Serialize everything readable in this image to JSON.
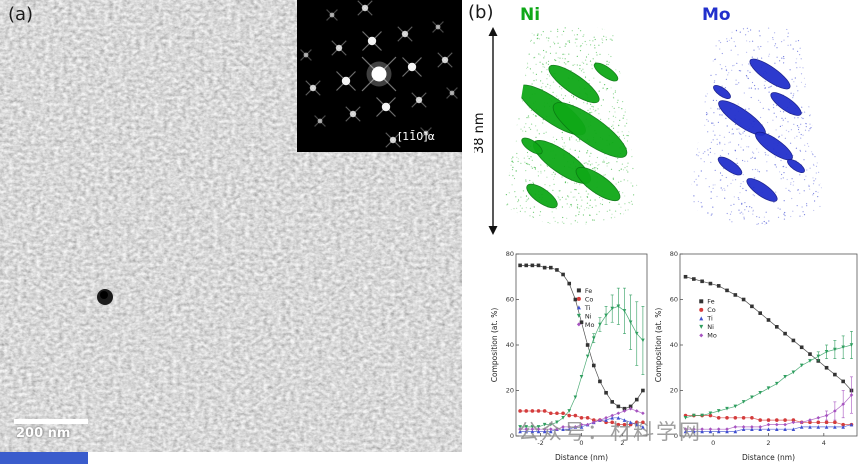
{
  "panel_a": {
    "label": "(a)",
    "scale_bar": "200 nm",
    "zone_axis": "[11̄0]α"
  },
  "panel_b": {
    "label": "(b)",
    "ni_label": "Ni",
    "mo_label": "Mo",
    "scale_label": "38 nm",
    "ni_color": "#0fa818",
    "mo_color": "#2230cc"
  },
  "watermark": "公众号：材料学网",
  "chart_data": [
    {
      "type": "line",
      "title": "",
      "xlabel": "Distance (nm)",
      "ylabel": "Composition (at. %)",
      "xlim": [
        -3.2,
        3.2
      ],
      "ylim": [
        0,
        80
      ],
      "xticks": [
        -2,
        0,
        2
      ],
      "yticks": [
        0,
        20,
        40,
        60,
        80
      ],
      "legend_pos": [
        0.48,
        0.2
      ],
      "x": [
        -3,
        -2.7,
        -2.4,
        -2.1,
        -1.8,
        -1.5,
        -1.2,
        -0.9,
        -0.6,
        -0.3,
        0,
        0.3,
        0.6,
        0.9,
        1.2,
        1.5,
        1.8,
        2.1,
        2.4,
        2.7,
        3
      ],
      "series": [
        {
          "name": "Fe",
          "color": "#333333",
          "marker": "square",
          "values": [
            75,
            75,
            75,
            75,
            74,
            74,
            73,
            71,
            67,
            60,
            50,
            40,
            31,
            24,
            19,
            15,
            13,
            12,
            13,
            16,
            20
          ]
        },
        {
          "name": "Co",
          "color": "#d43c3c",
          "marker": "circle",
          "values": [
            11,
            11,
            11,
            11,
            11,
            10,
            10,
            10,
            9,
            9,
            8,
            8,
            7,
            7,
            6,
            6,
            5,
            5,
            5,
            6,
            6
          ]
        },
        {
          "name": "Ti",
          "color": "#4150d0",
          "marker": "triangle-up",
          "values": [
            2,
            2,
            2,
            2,
            2,
            2,
            3,
            3,
            3,
            4,
            4,
            5,
            6,
            7,
            7,
            8,
            8,
            7,
            6,
            5,
            4
          ]
        },
        {
          "name": "Ni",
          "color": "#2f9e5f",
          "marker": "triangle-down",
          "values": [
            4,
            4,
            4,
            4,
            5,
            5,
            6,
            8,
            11,
            17,
            26,
            35,
            43,
            49,
            53,
            56,
            57,
            55,
            50,
            45,
            42
          ],
          "errors": [
            0,
            0,
            0,
            0,
            0,
            0,
            0,
            0,
            0,
            0,
            0,
            0,
            2,
            3,
            4,
            6,
            8,
            10,
            12,
            14,
            15
          ]
        },
        {
          "name": "Mo",
          "color": "#a653c0",
          "marker": "diamond",
          "values": [
            3,
            3,
            3,
            3,
            3,
            3,
            3,
            4,
            4,
            4,
            5,
            5,
            6,
            7,
            8,
            9,
            10,
            11,
            12,
            11,
            10
          ]
        }
      ]
    },
    {
      "type": "line",
      "title": "",
      "xlabel": "Distance (nm)",
      "ylabel": "Composition (at. %)",
      "xlim": [
        -1.2,
        5.2
      ],
      "ylim": [
        0,
        80
      ],
      "xticks": [
        0,
        2,
        4
      ],
      "yticks": [
        0,
        20,
        40,
        60,
        80
      ],
      "legend_pos": [
        0.12,
        0.26
      ],
      "x": [
        -1,
        -0.7,
        -0.4,
        -0.1,
        0.2,
        0.5,
        0.8,
        1.1,
        1.4,
        1.7,
        2,
        2.3,
        2.6,
        2.9,
        3.2,
        3.5,
        3.8,
        4.1,
        4.4,
        4.7,
        5
      ],
      "series": [
        {
          "name": "Fe",
          "color": "#333333",
          "marker": "square",
          "values": [
            70,
            69,
            68,
            67,
            66,
            64,
            62,
            60,
            57,
            54,
            51,
            48,
            45,
            42,
            39,
            36,
            33,
            30,
            27,
            24,
            20
          ]
        },
        {
          "name": "Co",
          "color": "#d43c3c",
          "marker": "circle",
          "values": [
            9,
            9,
            9,
            9,
            8,
            8,
            8,
            8,
            8,
            7,
            7,
            7,
            7,
            7,
            6,
            6,
            6,
            6,
            6,
            5,
            5
          ]
        },
        {
          "name": "Ti",
          "color": "#4150d0",
          "marker": "triangle-up",
          "values": [
            2,
            2,
            2,
            2,
            2,
            2,
            2,
            3,
            3,
            3,
            3,
            3,
            3,
            3,
            4,
            4,
            4,
            4,
            4,
            4,
            5
          ]
        },
        {
          "name": "Ni",
          "color": "#2f9e5f",
          "marker": "triangle-down",
          "values": [
            8,
            9,
            9,
            10,
            11,
            12,
            13,
            15,
            17,
            19,
            21,
            23,
            26,
            28,
            31,
            33,
            35,
            37,
            38,
            39,
            40
          ],
          "errors": [
            0,
            0,
            0,
            0,
            0,
            0,
            0,
            0,
            0,
            0,
            0,
            0,
            0,
            0,
            0,
            0,
            2,
            3,
            4,
            5,
            6
          ]
        },
        {
          "name": "Mo",
          "color": "#a653c0",
          "marker": "diamond",
          "values": [
            3,
            3,
            3,
            3,
            3,
            3,
            4,
            4,
            4,
            4,
            5,
            5,
            5,
            6,
            6,
            7,
            8,
            9,
            11,
            14,
            18
          ],
          "errors": [
            0,
            0,
            0,
            0,
            0,
            0,
            0,
            0,
            0,
            0,
            0,
            0,
            0,
            0,
            0,
            0,
            0,
            2,
            4,
            6,
            8
          ]
        }
      ]
    }
  ]
}
